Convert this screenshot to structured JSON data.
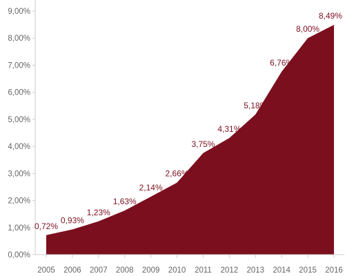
{
  "chart_data": {
    "type": "area",
    "title": "",
    "xlabel": "",
    "ylabel": "",
    "categories": [
      "2005",
      "2006",
      "2007",
      "2008",
      "2009",
      "2010",
      "2011",
      "2012",
      "2013",
      "2014",
      "2015",
      "2016"
    ],
    "values": [
      0.72,
      0.93,
      1.23,
      1.63,
      2.14,
      2.66,
      3.75,
      4.31,
      5.18,
      6.76,
      8.0,
      8.49
    ],
    "data_labels": [
      "0,72%",
      "0,93%",
      "1,23%",
      "1,63%",
      "2,14%",
      "2,66%",
      "3,75%",
      "4,31%",
      "5,18%",
      "6,76%",
      "8,00%",
      "8,49%"
    ],
    "ylim": [
      0,
      9
    ],
    "yticks": [
      0,
      1,
      2,
      3,
      4,
      5,
      6,
      7,
      8,
      9
    ],
    "ytick_labels": [
      "0,00%",
      "1,00%",
      "2,00%",
      "3,00%",
      "4,00%",
      "5,00%",
      "6,00%",
      "7,00%",
      "8,00%",
      "9,00%"
    ],
    "grid": false,
    "legend": "none",
    "colors": {
      "fill": "#7b0f1e",
      "data_label": "#7b0f1e",
      "axis": "#cccccc",
      "tick_text": "#666666"
    }
  }
}
